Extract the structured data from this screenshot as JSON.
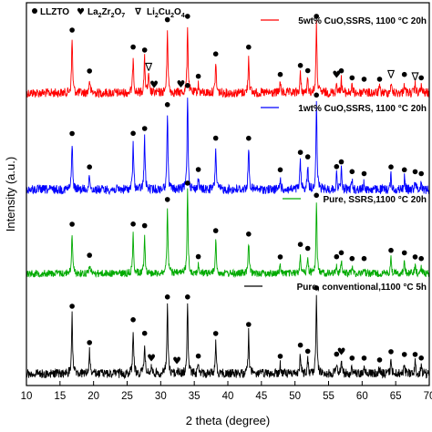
{
  "chart_data": {
    "type": "line",
    "xlabel": "2 theta (degree)",
    "ylabel": "Intensity (a.u.)",
    "xlim": [
      10,
      70
    ],
    "xticks": [
      10,
      15,
      20,
      25,
      30,
      35,
      40,
      45,
      50,
      55,
      60,
      65,
      70
    ],
    "phase_legend": {
      "llzto": "LLZTO",
      "la2zr2o7": {
        "main": "La",
        "s1": "2",
        "mid": "Zr",
        "s2": "2",
        "end": "O",
        "s3": "7"
      },
      "li2cu2o4": {
        "main": "Li",
        "s1": "2",
        "mid": "Cu",
        "s2": "2",
        "end": "O",
        "s3": "4"
      }
    },
    "series": [
      {
        "name": "5wt% CuO,SSRS, 1100 °C 20h",
        "color": "#ff0000",
        "peaks": [
          [
            16.8,
            0.8
          ],
          [
            19.4,
            0.2
          ],
          [
            25.9,
            0.55
          ],
          [
            27.6,
            0.5
          ],
          [
            28.2,
            0.25
          ],
          [
            31.0,
            0.95
          ],
          [
            34.0,
            1.0
          ],
          [
            35.6,
            0.12
          ],
          [
            38.2,
            0.45
          ],
          [
            43.1,
            0.55
          ],
          [
            47.8,
            0.15
          ],
          [
            50.8,
            0.28
          ],
          [
            51.9,
            0.2
          ],
          [
            53.2,
            1.0
          ],
          [
            56.2,
            0.15
          ],
          [
            56.9,
            0.2
          ],
          [
            58.5,
            0.1
          ],
          [
            60.3,
            0.08
          ],
          [
            62.6,
            0.08
          ],
          [
            64.3,
            0.15
          ],
          [
            66.3,
            0.15
          ],
          [
            67.9,
            0.12
          ],
          [
            68.8,
            0.1
          ]
        ]
      },
      {
        "name": "1wt% CuO,SSRS, 1100 °C 20h",
        "color": "#0000ff",
        "peaks": [
          [
            16.8,
            0.5
          ],
          [
            19.4,
            0.15
          ],
          [
            25.9,
            0.5
          ],
          [
            27.6,
            0.55
          ],
          [
            31.0,
            0.8
          ],
          [
            34.0,
            1.0
          ],
          [
            35.6,
            0.12
          ],
          [
            38.2,
            0.45
          ],
          [
            43.1,
            0.45
          ],
          [
            47.8,
            0.12
          ],
          [
            50.8,
            0.3
          ],
          [
            51.9,
            0.25
          ],
          [
            53.2,
            0.9
          ],
          [
            56.2,
            0.15
          ],
          [
            56.9,
            0.2
          ],
          [
            58.5,
            0.1
          ],
          [
            60.3,
            0.08
          ],
          [
            64.3,
            0.15
          ],
          [
            66.3,
            0.12
          ],
          [
            67.9,
            0.1
          ],
          [
            68.8,
            0.08
          ]
        ]
      },
      {
        "name": "Pure, SSRS,1100 °C 20h",
        "color": "#00aa00",
        "peaks": [
          [
            16.8,
            0.5
          ],
          [
            19.4,
            0.12
          ],
          [
            25.9,
            0.5
          ],
          [
            27.6,
            0.48
          ],
          [
            31.0,
            0.8
          ],
          [
            34.0,
            1.0
          ],
          [
            35.6,
            0.1
          ],
          [
            38.2,
            0.42
          ],
          [
            43.1,
            0.38
          ],
          [
            47.8,
            0.1
          ],
          [
            50.8,
            0.25
          ],
          [
            51.9,
            0.2
          ],
          [
            53.2,
            0.85
          ],
          [
            56.2,
            0.1
          ],
          [
            56.9,
            0.15
          ],
          [
            58.5,
            0.08
          ],
          [
            60.3,
            0.08
          ],
          [
            64.3,
            0.18
          ],
          [
            66.3,
            0.15
          ],
          [
            67.9,
            0.1
          ],
          [
            68.8,
            0.08
          ]
        ]
      },
      {
        "name": "Pure, conventional,1100 °C 5h",
        "color": "#000000",
        "peaks": [
          [
            16.8,
            0.65
          ],
          [
            19.4,
            0.25
          ],
          [
            25.9,
            0.5
          ],
          [
            27.6,
            0.35
          ],
          [
            28.6,
            0.08
          ],
          [
            31.0,
            0.75
          ],
          [
            32.4,
            0.05
          ],
          [
            34.0,
            0.75
          ],
          [
            35.6,
            0.1
          ],
          [
            38.2,
            0.35
          ],
          [
            43.1,
            0.45
          ],
          [
            47.8,
            0.1
          ],
          [
            50.8,
            0.22
          ],
          [
            51.9,
            0.15
          ],
          [
            53.2,
            0.85
          ],
          [
            56.2,
            0.12
          ],
          [
            56.9,
            0.15
          ],
          [
            58.5,
            0.08
          ],
          [
            60.3,
            0.08
          ],
          [
            62.6,
            0.06
          ],
          [
            64.3,
            0.15
          ],
          [
            66.3,
            0.12
          ],
          [
            67.9,
            0.12
          ],
          [
            68.8,
            0.08
          ]
        ]
      }
    ],
    "markers": [
      {
        "series": 0,
        "x": 16.8,
        "kind": "llzto"
      },
      {
        "series": 0,
        "x": 19.4,
        "kind": "llzto"
      },
      {
        "series": 0,
        "x": 25.9,
        "kind": "llzto"
      },
      {
        "series": 0,
        "x": 27.6,
        "kind": "llzto"
      },
      {
        "series": 0,
        "x": 28.2,
        "kind": "li2cu2o4"
      },
      {
        "series": 0,
        "x": 29.0,
        "kind": "la2zr2o7"
      },
      {
        "series": 0,
        "x": 31.0,
        "kind": "llzto"
      },
      {
        "series": 0,
        "x": 33.0,
        "kind": "la2zr2o7"
      },
      {
        "series": 0,
        "x": 34.0,
        "kind": "llzto"
      },
      {
        "series": 0,
        "x": 35.6,
        "kind": "llzto"
      },
      {
        "series": 0,
        "x": 38.2,
        "kind": "llzto"
      },
      {
        "series": 0,
        "x": 43.1,
        "kind": "llzto"
      },
      {
        "series": 0,
        "x": 47.8,
        "kind": "llzto"
      },
      {
        "series": 0,
        "x": 50.8,
        "kind": "llzto"
      },
      {
        "series": 0,
        "x": 51.9,
        "kind": "llzto"
      },
      {
        "series": 0,
        "x": 53.2,
        "kind": "llzto"
      },
      {
        "series": 0,
        "x": 56.2,
        "kind": "la2zr2o7"
      },
      {
        "series": 0,
        "x": 56.9,
        "kind": "llzto"
      },
      {
        "series": 0,
        "x": 58.5,
        "kind": "llzto"
      },
      {
        "series": 0,
        "x": 60.3,
        "kind": "llzto"
      },
      {
        "series": 0,
        "x": 62.6,
        "kind": "llzto"
      },
      {
        "series": 0,
        "x": 64.3,
        "kind": "li2cu2o4"
      },
      {
        "series": 0,
        "x": 66.3,
        "kind": "llzto"
      },
      {
        "series": 0,
        "x": 67.9,
        "kind": "li2cu2o4"
      },
      {
        "series": 0,
        "x": 68.8,
        "kind": "llzto"
      },
      {
        "series": 1,
        "x": 16.8,
        "kind": "llzto"
      },
      {
        "series": 1,
        "x": 19.4,
        "kind": "llzto"
      },
      {
        "series": 1,
        "x": 25.9,
        "kind": "llzto"
      },
      {
        "series": 1,
        "x": 27.6,
        "kind": "llzto"
      },
      {
        "series": 1,
        "x": 31.0,
        "kind": "llzto"
      },
      {
        "series": 1,
        "x": 34.0,
        "kind": "llzto"
      },
      {
        "series": 1,
        "x": 35.6,
        "kind": "llzto"
      },
      {
        "series": 1,
        "x": 38.2,
        "kind": "llzto"
      },
      {
        "series": 1,
        "x": 43.1,
        "kind": "llzto"
      },
      {
        "series": 1,
        "x": 47.8,
        "kind": "llzto"
      },
      {
        "series": 1,
        "x": 50.8,
        "kind": "llzto"
      },
      {
        "series": 1,
        "x": 51.9,
        "kind": "llzto"
      },
      {
        "series": 1,
        "x": 53.2,
        "kind": "llzto"
      },
      {
        "series": 1,
        "x": 56.2,
        "kind": "llzto"
      },
      {
        "series": 1,
        "x": 56.9,
        "kind": "llzto"
      },
      {
        "series": 1,
        "x": 58.5,
        "kind": "llzto"
      },
      {
        "series": 1,
        "x": 60.3,
        "kind": "llzto"
      },
      {
        "series": 1,
        "x": 64.3,
        "kind": "llzto"
      },
      {
        "series": 1,
        "x": 66.3,
        "kind": "llzto"
      },
      {
        "series": 1,
        "x": 67.9,
        "kind": "llzto"
      },
      {
        "series": 1,
        "x": 68.8,
        "kind": "llzto"
      },
      {
        "series": 2,
        "x": 16.8,
        "kind": "llzto"
      },
      {
        "series": 2,
        "x": 19.4,
        "kind": "llzto"
      },
      {
        "series": 2,
        "x": 25.9,
        "kind": "llzto"
      },
      {
        "series": 2,
        "x": 27.6,
        "kind": "llzto"
      },
      {
        "series": 2,
        "x": 31.0,
        "kind": "llzto"
      },
      {
        "series": 2,
        "x": 34.0,
        "kind": "llzto"
      },
      {
        "series": 2,
        "x": 35.6,
        "kind": "llzto"
      },
      {
        "series": 2,
        "x": 38.2,
        "kind": "llzto"
      },
      {
        "series": 2,
        "x": 43.1,
        "kind": "llzto"
      },
      {
        "series": 2,
        "x": 47.8,
        "kind": "llzto"
      },
      {
        "series": 2,
        "x": 50.8,
        "kind": "llzto"
      },
      {
        "series": 2,
        "x": 51.9,
        "kind": "llzto"
      },
      {
        "series": 2,
        "x": 53.2,
        "kind": "llzto"
      },
      {
        "series": 2,
        "x": 56.2,
        "kind": "llzto"
      },
      {
        "series": 2,
        "x": 56.9,
        "kind": "llzto"
      },
      {
        "series": 2,
        "x": 58.5,
        "kind": "llzto"
      },
      {
        "series": 2,
        "x": 60.3,
        "kind": "llzto"
      },
      {
        "series": 2,
        "x": 64.3,
        "kind": "llzto"
      },
      {
        "series": 2,
        "x": 66.3,
        "kind": "llzto"
      },
      {
        "series": 2,
        "x": 67.9,
        "kind": "llzto"
      },
      {
        "series": 2,
        "x": 68.8,
        "kind": "llzto"
      },
      {
        "series": 3,
        "x": 16.8,
        "kind": "llzto"
      },
      {
        "series": 3,
        "x": 19.4,
        "kind": "llzto"
      },
      {
        "series": 3,
        "x": 25.9,
        "kind": "llzto"
      },
      {
        "series": 3,
        "x": 27.6,
        "kind": "llzto"
      },
      {
        "series": 3,
        "x": 28.6,
        "kind": "la2zr2o7"
      },
      {
        "series": 3,
        "x": 31.0,
        "kind": "llzto"
      },
      {
        "series": 3,
        "x": 32.4,
        "kind": "la2zr2o7"
      },
      {
        "series": 3,
        "x": 34.0,
        "kind": "llzto"
      },
      {
        "series": 3,
        "x": 35.6,
        "kind": "llzto"
      },
      {
        "series": 3,
        "x": 38.2,
        "kind": "llzto"
      },
      {
        "series": 3,
        "x": 43.1,
        "kind": "llzto"
      },
      {
        "series": 3,
        "x": 47.8,
        "kind": "llzto"
      },
      {
        "series": 3,
        "x": 50.8,
        "kind": "llzto"
      },
      {
        "series": 3,
        "x": 51.9,
        "kind": "llzto"
      },
      {
        "series": 3,
        "x": 53.2,
        "kind": "llzto"
      },
      {
        "series": 3,
        "x": 56.2,
        "kind": "llzto"
      },
      {
        "series": 3,
        "x": 56.9,
        "kind": "la2zr2o7"
      },
      {
        "series": 3,
        "x": 58.5,
        "kind": "llzto"
      },
      {
        "series": 3,
        "x": 60.3,
        "kind": "llzto"
      },
      {
        "series": 3,
        "x": 62.6,
        "kind": "llzto"
      },
      {
        "series": 3,
        "x": 64.3,
        "kind": "llzto"
      },
      {
        "series": 3,
        "x": 66.3,
        "kind": "llzto"
      },
      {
        "series": 3,
        "x": 67.9,
        "kind": "llzto"
      },
      {
        "series": 3,
        "x": 68.8,
        "kind": "llzto"
      }
    ]
  }
}
